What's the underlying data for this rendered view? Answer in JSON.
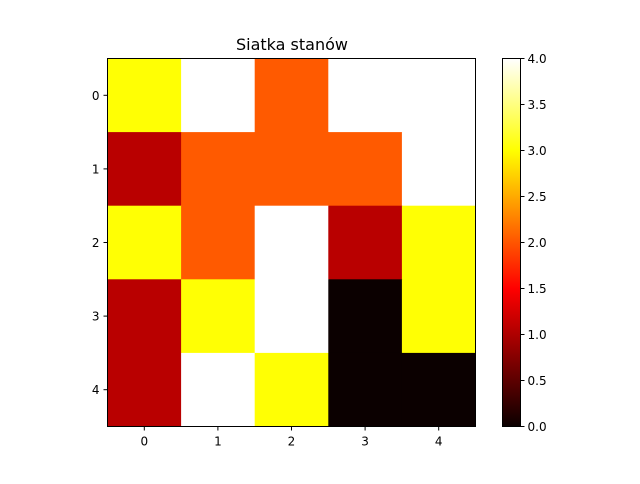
{
  "chart_data": {
    "type": "heatmap",
    "title": "Siatka stanów",
    "xlabel": "",
    "ylabel": "",
    "x_ticks": [
      "0",
      "1",
      "2",
      "3",
      "4"
    ],
    "y_ticks": [
      "0",
      "1",
      "2",
      "3",
      "4"
    ],
    "values": [
      [
        3,
        4,
        2,
        4,
        4
      ],
      [
        1,
        2,
        2,
        2,
        4
      ],
      [
        3,
        2,
        4,
        1,
        3
      ],
      [
        1,
        3,
        4,
        0,
        3
      ],
      [
        1,
        4,
        3,
        0,
        0
      ]
    ],
    "colormap": "hot",
    "vmin": 0,
    "vmax": 4,
    "colorbar_ticks": [
      "0.0",
      "0.5",
      "1.0",
      "1.5",
      "2.0",
      "2.5",
      "3.0",
      "3.5",
      "4.0"
    ],
    "grid": false
  }
}
